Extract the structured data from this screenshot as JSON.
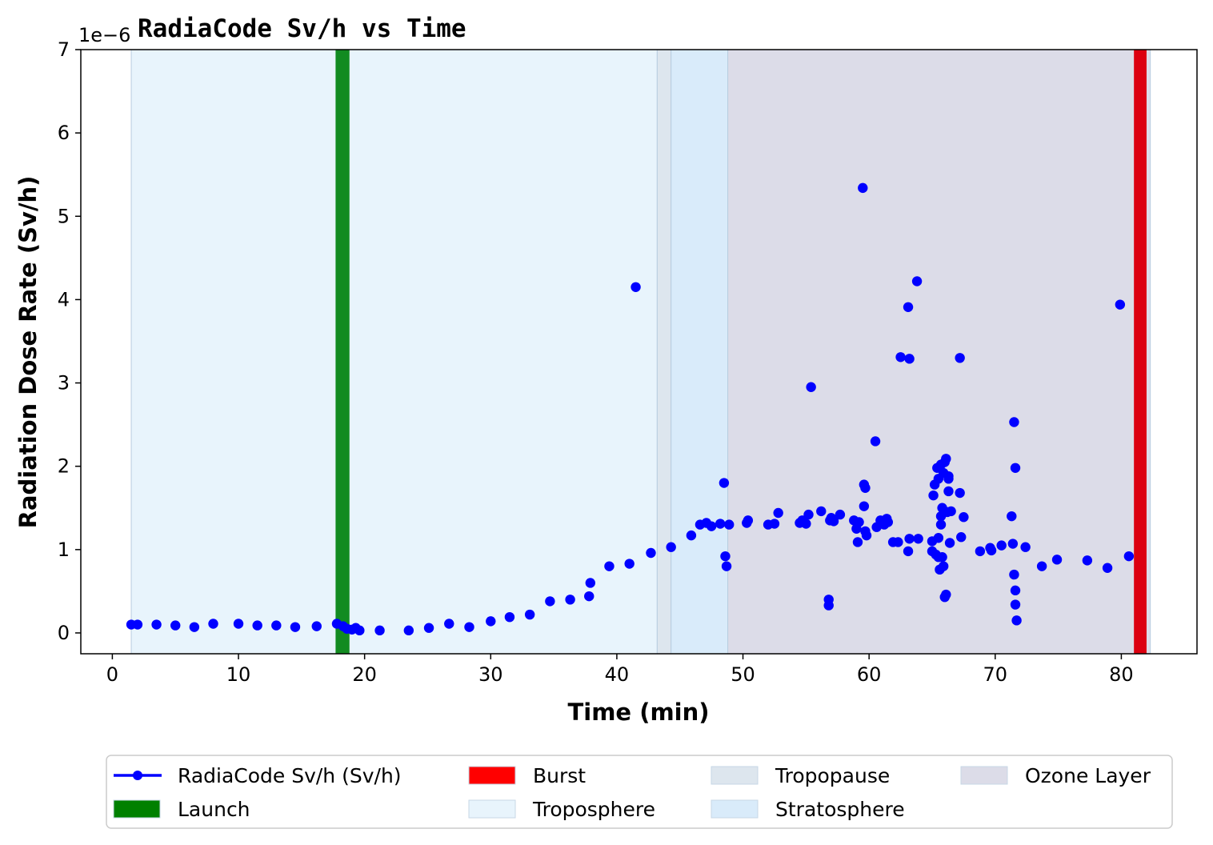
{
  "chart_data": {
    "type": "scatter",
    "title": "RadiaCode Sv/h vs Time",
    "xlabel": "Time (min)",
    "ylabel": "Radiation Dose Rate (Sv/h)",
    "y_offset_label": "1e−6",
    "xlim": [
      -2.5,
      86
    ],
    "ylim": [
      -0.25,
      7
    ],
    "x_ticks": [
      0,
      10,
      20,
      30,
      40,
      50,
      60,
      70,
      80
    ],
    "y_ticks": [
      0,
      1,
      2,
      3,
      4,
      5,
      6,
      7
    ],
    "grid": false,
    "legend_placement": "below plot",
    "series": [
      {
        "name": "RadiaCode Sv/h (Sv/h)",
        "color": "#0000ff",
        "unit_scale": "1e-6",
        "points": [
          [
            1.5,
            0.1
          ],
          [
            2.0,
            0.1
          ],
          [
            3.5,
            0.1
          ],
          [
            5.0,
            0.09
          ],
          [
            6.5,
            0.07
          ],
          [
            8.0,
            0.11
          ],
          [
            10.0,
            0.11
          ],
          [
            11.5,
            0.09
          ],
          [
            13.0,
            0.09
          ],
          [
            14.5,
            0.07
          ],
          [
            16.2,
            0.08
          ],
          [
            17.8,
            0.11
          ],
          [
            18.3,
            0.08
          ],
          [
            18.6,
            0.05
          ],
          [
            19.0,
            0.04
          ],
          [
            19.3,
            0.06
          ],
          [
            19.6,
            0.03
          ],
          [
            21.2,
            0.03
          ],
          [
            23.5,
            0.03
          ],
          [
            25.1,
            0.06
          ],
          [
            26.7,
            0.11
          ],
          [
            28.3,
            0.07
          ],
          [
            30.0,
            0.14
          ],
          [
            31.5,
            0.19
          ],
          [
            33.1,
            0.22
          ],
          [
            34.7,
            0.38
          ],
          [
            36.3,
            0.4
          ],
          [
            37.8,
            0.44
          ],
          [
            37.9,
            0.6
          ],
          [
            39.4,
            0.8
          ],
          [
            41.0,
            0.83
          ],
          [
            41.5,
            4.15
          ],
          [
            42.7,
            0.96
          ],
          [
            44.3,
            1.03
          ],
          [
            45.9,
            1.17
          ],
          [
            46.6,
            1.3
          ],
          [
            47.1,
            1.32
          ],
          [
            47.5,
            1.28
          ],
          [
            48.2,
            1.31
          ],
          [
            48.5,
            1.8
          ],
          [
            48.6,
            0.92
          ],
          [
            48.7,
            0.8
          ],
          [
            48.9,
            1.3
          ],
          [
            50.3,
            1.32
          ],
          [
            50.4,
            1.35
          ],
          [
            52.0,
            1.3
          ],
          [
            52.5,
            1.31
          ],
          [
            52.8,
            1.44
          ],
          [
            54.5,
            1.32
          ],
          [
            54.7,
            1.35
          ],
          [
            55.0,
            1.31
          ],
          [
            55.2,
            1.42
          ],
          [
            55.4,
            2.95
          ],
          [
            56.2,
            1.46
          ],
          [
            56.8,
            0.4
          ],
          [
            56.8,
            0.33
          ],
          [
            56.9,
            1.35
          ],
          [
            57.0,
            1.38
          ],
          [
            57.2,
            1.34
          ],
          [
            57.7,
            1.42
          ],
          [
            58.8,
            1.35
          ],
          [
            59.0,
            1.25
          ],
          [
            59.1,
            1.09
          ],
          [
            59.2,
            1.33
          ],
          [
            59.5,
            5.34
          ],
          [
            59.6,
            1.78
          ],
          [
            59.6,
            1.52
          ],
          [
            59.7,
            1.74
          ],
          [
            59.7,
            1.22
          ],
          [
            59.8,
            1.17
          ],
          [
            60.5,
            2.3
          ],
          [
            60.6,
            1.27
          ],
          [
            60.9,
            1.35
          ],
          [
            61.2,
            1.3
          ],
          [
            61.4,
            1.37
          ],
          [
            61.5,
            1.33
          ],
          [
            61.9,
            1.09
          ],
          [
            62.3,
            1.09
          ],
          [
            62.5,
            3.31
          ],
          [
            63.1,
            3.91
          ],
          [
            63.1,
            0.98
          ],
          [
            63.2,
            3.29
          ],
          [
            63.2,
            1.13
          ],
          [
            63.8,
            4.22
          ],
          [
            63.9,
            1.13
          ],
          [
            65.0,
            1.1
          ],
          [
            65.0,
            0.98
          ],
          [
            65.1,
            1.65
          ],
          [
            65.2,
            1.78
          ],
          [
            65.3,
            0.94
          ],
          [
            65.4,
            1.98
          ],
          [
            65.5,
            1.85
          ],
          [
            65.5,
            1.14
          ],
          [
            65.5,
            0.91
          ],
          [
            65.6,
            0.76
          ],
          [
            65.7,
            2.02
          ],
          [
            65.7,
            1.3
          ],
          [
            65.7,
            1.4
          ],
          [
            65.8,
            1.5
          ],
          [
            65.8,
            0.91
          ],
          [
            65.9,
            1.92
          ],
          [
            65.9,
            0.8
          ],
          [
            66.0,
            2.05
          ],
          [
            66.0,
            0.43
          ],
          [
            66.1,
            2.09
          ],
          [
            66.1,
            0.46
          ],
          [
            66.2,
            1.45
          ],
          [
            66.3,
            1.88
          ],
          [
            66.3,
            1.7
          ],
          [
            66.3,
            1.85
          ],
          [
            66.4,
            1.08
          ],
          [
            66.5,
            1.46
          ],
          [
            67.2,
            1.68
          ],
          [
            67.2,
            3.3
          ],
          [
            67.3,
            1.15
          ],
          [
            67.5,
            1.39
          ],
          [
            68.8,
            0.98
          ],
          [
            69.6,
            1.02
          ],
          [
            69.7,
            0.99
          ],
          [
            70.5,
            1.05
          ],
          [
            71.3,
            1.4
          ],
          [
            71.4,
            1.07
          ],
          [
            71.5,
            0.7
          ],
          [
            71.5,
            2.53
          ],
          [
            71.6,
            0.51
          ],
          [
            71.6,
            1.98
          ],
          [
            71.6,
            0.34
          ],
          [
            71.7,
            0.15
          ],
          [
            72.4,
            1.03
          ],
          [
            73.7,
            0.8
          ],
          [
            74.9,
            0.88
          ],
          [
            77.3,
            0.87
          ],
          [
            78.9,
            0.78
          ],
          [
            79.9,
            3.94
          ],
          [
            80.6,
            0.92
          ]
        ]
      }
    ],
    "bands": [
      {
        "name": "Troposphere",
        "x": [
          1.5,
          43.2
        ],
        "color": "#e8f4fc",
        "opacity": 1.0
      },
      {
        "name": "Tropopause",
        "x": [
          43.2,
          44.3
        ],
        "color": "#dde6ee",
        "opacity": 1.0
      },
      {
        "name": "Stratosphere",
        "x": [
          44.3,
          48.8
        ],
        "color": "#d9ebfa",
        "opacity": 1.0
      },
      {
        "name": "Ozone Layer",
        "x": [
          48.8,
          82.3
        ],
        "color": "#dcdce8",
        "opacity": 1.0
      }
    ],
    "events": [
      {
        "name": "Launch",
        "x": [
          17.7,
          18.8
        ],
        "color": "#128b21"
      },
      {
        "name": "Burst",
        "x": [
          81.0,
          82.0
        ],
        "color": "#dc0010"
      }
    ],
    "legend": [
      {
        "label": "RadiaCode Sv/h (Sv/h)",
        "kind": "line-marker",
        "color": "#0000ff"
      },
      {
        "label": "Launch",
        "kind": "patch",
        "color": "#008000"
      },
      {
        "label": "Burst",
        "kind": "patch",
        "color": "#ff0000"
      },
      {
        "label": "Troposphere",
        "kind": "patch",
        "color": "#e8f4fc"
      },
      {
        "label": "Tropopause",
        "kind": "patch",
        "color": "#dde6ee"
      },
      {
        "label": "Stratosphere",
        "kind": "patch",
        "color": "#d9ebfa"
      },
      {
        "label": "Ozone Layer",
        "kind": "patch",
        "color": "#dcdce8"
      }
    ]
  }
}
